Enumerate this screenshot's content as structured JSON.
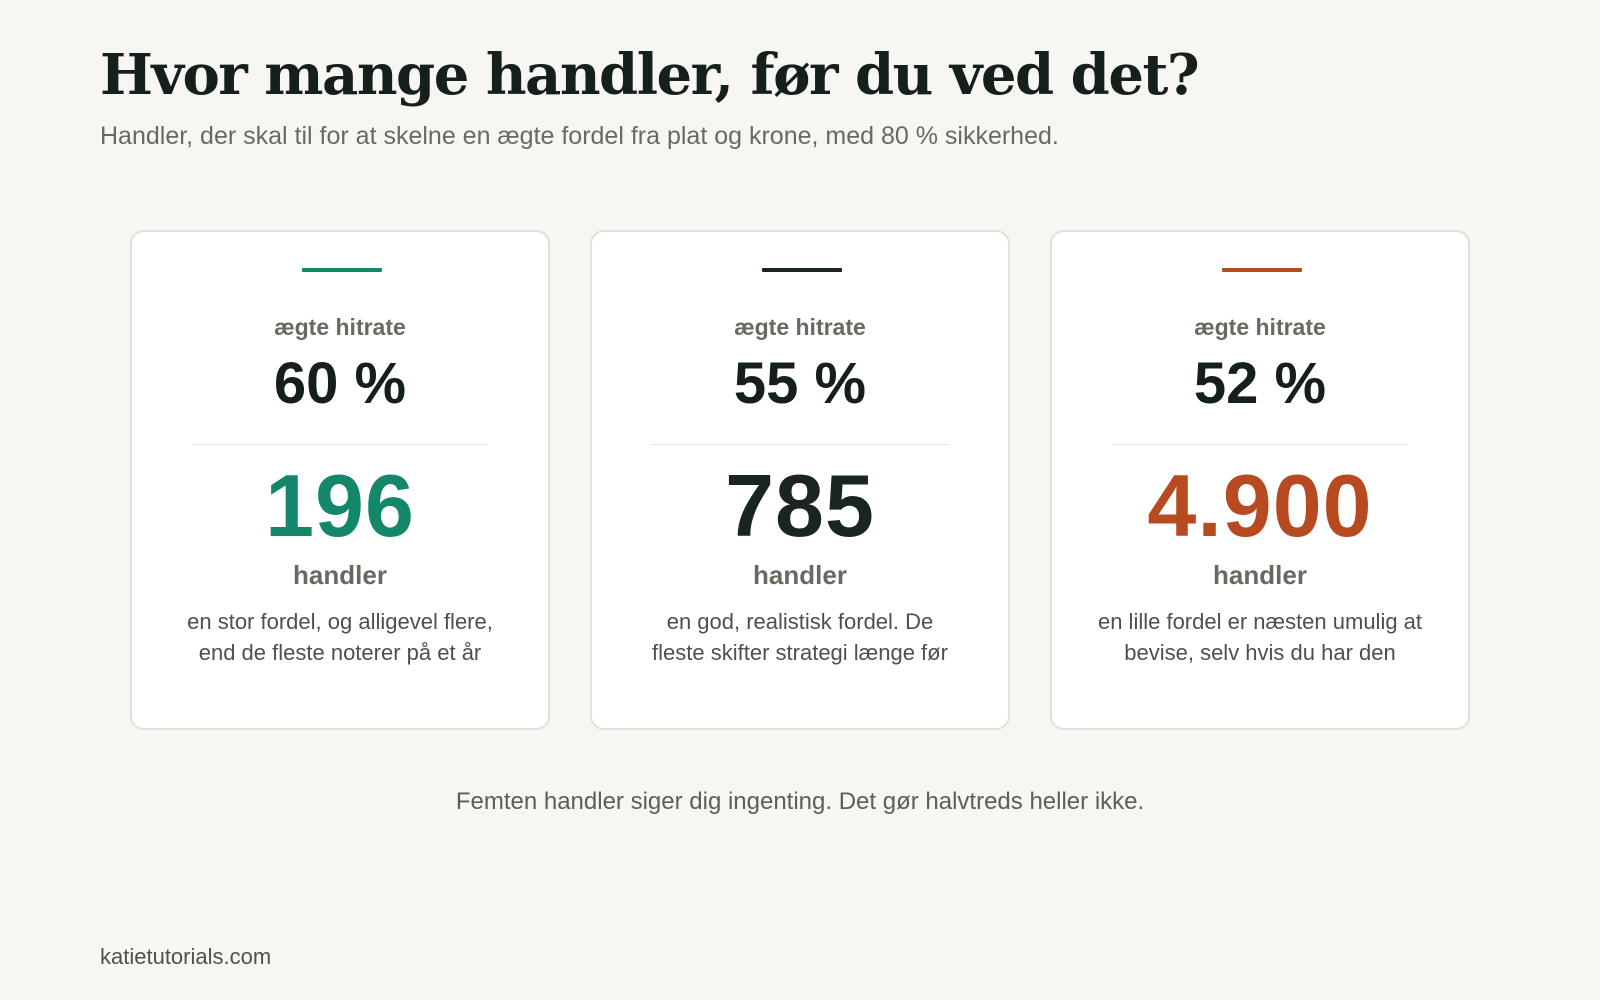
{
  "header": {
    "title": "Hvor mange handler, før du ved det?",
    "subtitle": "Handler, der skal til for at skelne en ægte fordel fra plat og krone, med 80 % sikkerhed."
  },
  "cards": [
    {
      "label": "ægte hitrate",
      "hit_rate": "60 %",
      "trades": "196",
      "unit": "handler",
      "note_line1": "en stor fordel, og alligevel flere,",
      "note_line2": "end de fleste noterer på et år",
      "accent_color": "#14876a"
    },
    {
      "label": "ægte hitrate",
      "hit_rate": "55 %",
      "trades": "785",
      "unit": "handler",
      "note_line1": "en god, realistisk fordel. De",
      "note_line2": "fleste skifter strategi længe før",
      "accent_color": "#1a2420"
    },
    {
      "label": "ægte hitrate",
      "hit_rate": "52 %",
      "trades": "4.900",
      "unit": "handler",
      "note_line1": "en lille fordel er næsten umulig at",
      "note_line2": "bevise, selv hvis du har den",
      "accent_color": "#b84a22"
    }
  ],
  "footer": {
    "note": "Femten handler siger dig ingenting. Det gør halvtreds heller ikke.",
    "site": "katietutorials.com"
  }
}
